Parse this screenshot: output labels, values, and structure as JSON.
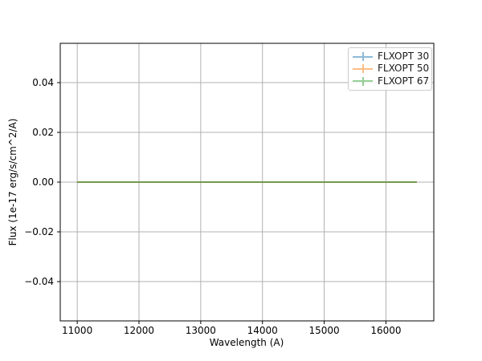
{
  "chart_data": {
    "type": "line",
    "title": "",
    "xlabel": "Wavelength (A)",
    "ylabel": "Flux (1e-17 erg/s/cm^2/A)",
    "xlim": [
      10725,
      16775
    ],
    "ylim": [
      -0.0558,
      0.0558
    ],
    "grid": true,
    "grid_color": "#b0b0b0",
    "spine_color": "#000000",
    "tick_color": "#000000",
    "background": "#ffffff",
    "line_alpha": 0.5,
    "line_width": 2,
    "xticks": [
      {
        "value": 11000,
        "label": "11000"
      },
      {
        "value": 12000,
        "label": "12000"
      },
      {
        "value": 13000,
        "label": "13000"
      },
      {
        "value": 14000,
        "label": "14000"
      },
      {
        "value": 15000,
        "label": "15000"
      },
      {
        "value": 16000,
        "label": "16000"
      }
    ],
    "yticks": [
      {
        "value": 0.04,
        "label": "0.04"
      },
      {
        "value": 0.02,
        "label": "0.02"
      },
      {
        "value": 0.0,
        "label": "0.00"
      },
      {
        "value": -0.02,
        "label": "−0.02"
      },
      {
        "value": -0.04,
        "label": "−0.04"
      }
    ],
    "series": [
      {
        "name": "FLXOPT 30",
        "color": "#1f77b4",
        "x": [
          11000,
          16500
        ],
        "y": [
          0,
          0
        ]
      },
      {
        "name": "FLXOPT 50",
        "color": "#ff7f0e",
        "x": [
          11000,
          16500
        ],
        "y": [
          0,
          0
        ]
      },
      {
        "name": "FLXOPT 67",
        "color": "#2ca02c",
        "x": [
          11000,
          16500
        ],
        "y": [
          0,
          0
        ]
      }
    ],
    "legend": {
      "position": "upper right",
      "entries": [
        "FLXOPT 30",
        "FLXOPT 50",
        "FLXOPT 67"
      ]
    }
  }
}
